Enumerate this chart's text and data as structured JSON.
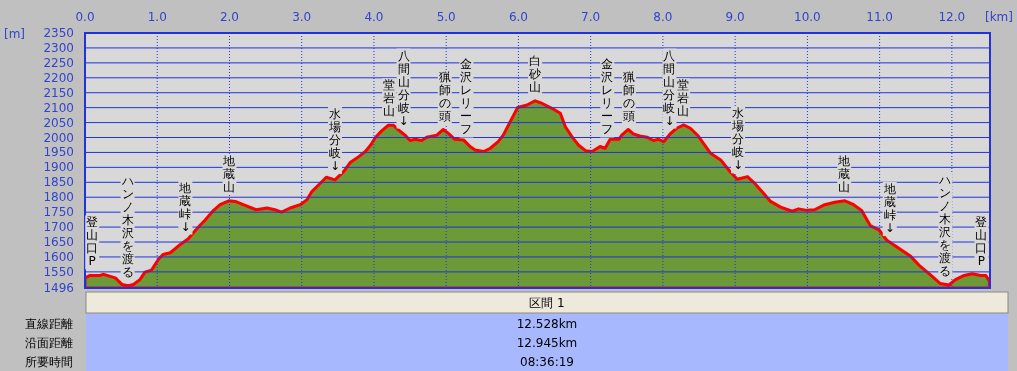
{
  "chart_data": {
    "type": "area",
    "xlabel": "[km]",
    "ylabel": "[m]",
    "xlim": [
      0,
      12.528
    ],
    "ylim": [
      1496,
      2350
    ],
    "xticks": [
      {
        "value": 0,
        "label": "0.0"
      },
      {
        "value": 1,
        "label": "1.0"
      },
      {
        "value": 2,
        "label": "2.0"
      },
      {
        "value": 3,
        "label": "3.0"
      },
      {
        "value": 4,
        "label": "4.0"
      },
      {
        "value": 5,
        "label": "5.0"
      },
      {
        "value": 6,
        "label": "6.0"
      },
      {
        "value": 7,
        "label": "7.0"
      },
      {
        "value": 8,
        "label": "8.0"
      },
      {
        "value": 9,
        "label": "9.0"
      },
      {
        "value": 10,
        "label": "10.0"
      },
      {
        "value": 11,
        "label": "11.0"
      },
      {
        "value": 12,
        "label": "12.0"
      }
    ],
    "yticks": [
      1496,
      1550,
      1600,
      1650,
      1700,
      1750,
      1800,
      1850,
      1900,
      1950,
      2000,
      2050,
      2100,
      2150,
      2200,
      2250,
      2300,
      2350
    ],
    "grid": true,
    "series": [
      {
        "color": "#6b9a36",
        "x": [
          0,
          0.07,
          0.21,
          0.25,
          0.35,
          0.42,
          0.51,
          0.6,
          0.67,
          0.76,
          0.83,
          0.92,
          1.02,
          1.08,
          1.18,
          1.32,
          1.43,
          1.5,
          1.59,
          1.66,
          1.78,
          1.87,
          1.99,
          2.08,
          2.19,
          2.37,
          2.52,
          2.63,
          2.72,
          2.84,
          2.98,
          3.07,
          3.14,
          3.25,
          3.34,
          3.46,
          3.58,
          3.67,
          3.79,
          3.88,
          3.95,
          4.02,
          4.11,
          4.2,
          4.27,
          4.34,
          4.43,
          4.5,
          4.57,
          4.66,
          4.73,
          4.87,
          4.96,
          5.03,
          5.12,
          5.24,
          5.33,
          5.4,
          5.52,
          5.61,
          5.72,
          5.79,
          5.89,
          5.99,
          6.12,
          6.23,
          6.33,
          6.47,
          6.58,
          6.65,
          6.74,
          6.83,
          6.93,
          7.02,
          7.13,
          7.2,
          7.27,
          7.39,
          7.43,
          7.52,
          7.59,
          7.68,
          7.78,
          7.87,
          7.94,
          8.01,
          8.1,
          8.19,
          8.29,
          8.38,
          8.49,
          8.66,
          8.8,
          8.94,
          9.03,
          9.17,
          9.26,
          9.39,
          9.49,
          9.63,
          9.79,
          9.88,
          9.99,
          10.1,
          10.24,
          10.38,
          10.52,
          10.64,
          10.75,
          10.87,
          10.99,
          11.1,
          11.24,
          11.43,
          11.56,
          11.7,
          11.84,
          11.96,
          12.05,
          12.17,
          12.28,
          12.4,
          12.47,
          12.52
        ],
        "values": [
          1530,
          1538,
          1538,
          1542,
          1535,
          1530,
          1508,
          1504,
          1508,
          1524,
          1549,
          1556,
          1593,
          1608,
          1614,
          1642,
          1661,
          1681,
          1705,
          1723,
          1756,
          1775,
          1788,
          1786,
          1775,
          1758,
          1764,
          1758,
          1750,
          1764,
          1775,
          1791,
          1819,
          1845,
          1867,
          1858,
          1886,
          1916,
          1936,
          1953,
          1973,
          2000,
          2023,
          2041,
          2041,
          2025,
          2008,
          1990,
          1994,
          1990,
          2001,
          2008,
          2027,
          2014,
          1994,
          1992,
          1970,
          1958,
          1953,
          1964,
          1986,
          2008,
          2055,
          2101,
          2109,
          2123,
          2114,
          2097,
          2081,
          2036,
          2003,
          1975,
          1956,
          1953,
          1970,
          1964,
          1994,
          1994,
          2008,
          2027,
          2012,
          2005,
          2001,
          1990,
          1994,
          1986,
          2012,
          2031,
          2042,
          2031,
          2005,
          1947,
          1925,
          1883,
          1860,
          1869,
          1849,
          1814,
          1786,
          1767,
          1753,
          1761,
          1756,
          1758,
          1775,
          1783,
          1788,
          1775,
          1756,
          1705,
          1691,
          1656,
          1633,
          1602,
          1569,
          1541,
          1511,
          1506,
          1524,
          1538,
          1544,
          1538,
          1538,
          1519
        ]
      }
    ],
    "annotations": [
      {
        "text": "登山口P",
        "x": 0.1,
        "y": 1538
      },
      {
        "text": "ハンノ木沢を渡る",
        "x": 0.59,
        "y": 1504
      },
      {
        "text": "地蔵峠↓",
        "x": 1.39,
        "y": 1655
      },
      {
        "text": "地蔵山",
        "x": 2.0,
        "y": 1788
      },
      {
        "text": "水場分岐↓",
        "x": 3.46,
        "y": 1858
      },
      {
        "text": "堂岩山",
        "x": 4.21,
        "y": 2041
      },
      {
        "text": "八間山分岐↓",
        "x": 4.41,
        "y": 2010
      },
      {
        "text": "猟師の頭",
        "x": 4.98,
        "y": 2025
      },
      {
        "text": "金沢レリーフ",
        "x": 5.28,
        "y": 1980
      },
      {
        "text": "白砂山",
        "x": 6.23,
        "y": 2123
      },
      {
        "text": "金沢レリーフ",
        "x": 7.23,
        "y": 1980
      },
      {
        "text": "猟師の頭",
        "x": 7.53,
        "y": 2025
      },
      {
        "text": "八間山分岐↓",
        "x": 8.09,
        "y": 2010
      },
      {
        "text": "堂岩山",
        "x": 8.28,
        "y": 2041
      },
      {
        "text": "水場分岐↓",
        "x": 9.04,
        "y": 1860
      },
      {
        "text": "地蔵山",
        "x": 10.51,
        "y": 1788
      },
      {
        "text": "地蔵峠↓",
        "x": 11.14,
        "y": 1650
      },
      {
        "text": "ハンノ木沢を渡る",
        "x": 11.91,
        "y": 1506
      },
      {
        "text": "登山口P",
        "x": 12.41,
        "y": 1538
      },
      "区間 1",
      "直線距離",
      "12.528km",
      "沿面距離",
      "12.945km",
      "所要時間",
      "08:36:19"
    ]
  }
}
